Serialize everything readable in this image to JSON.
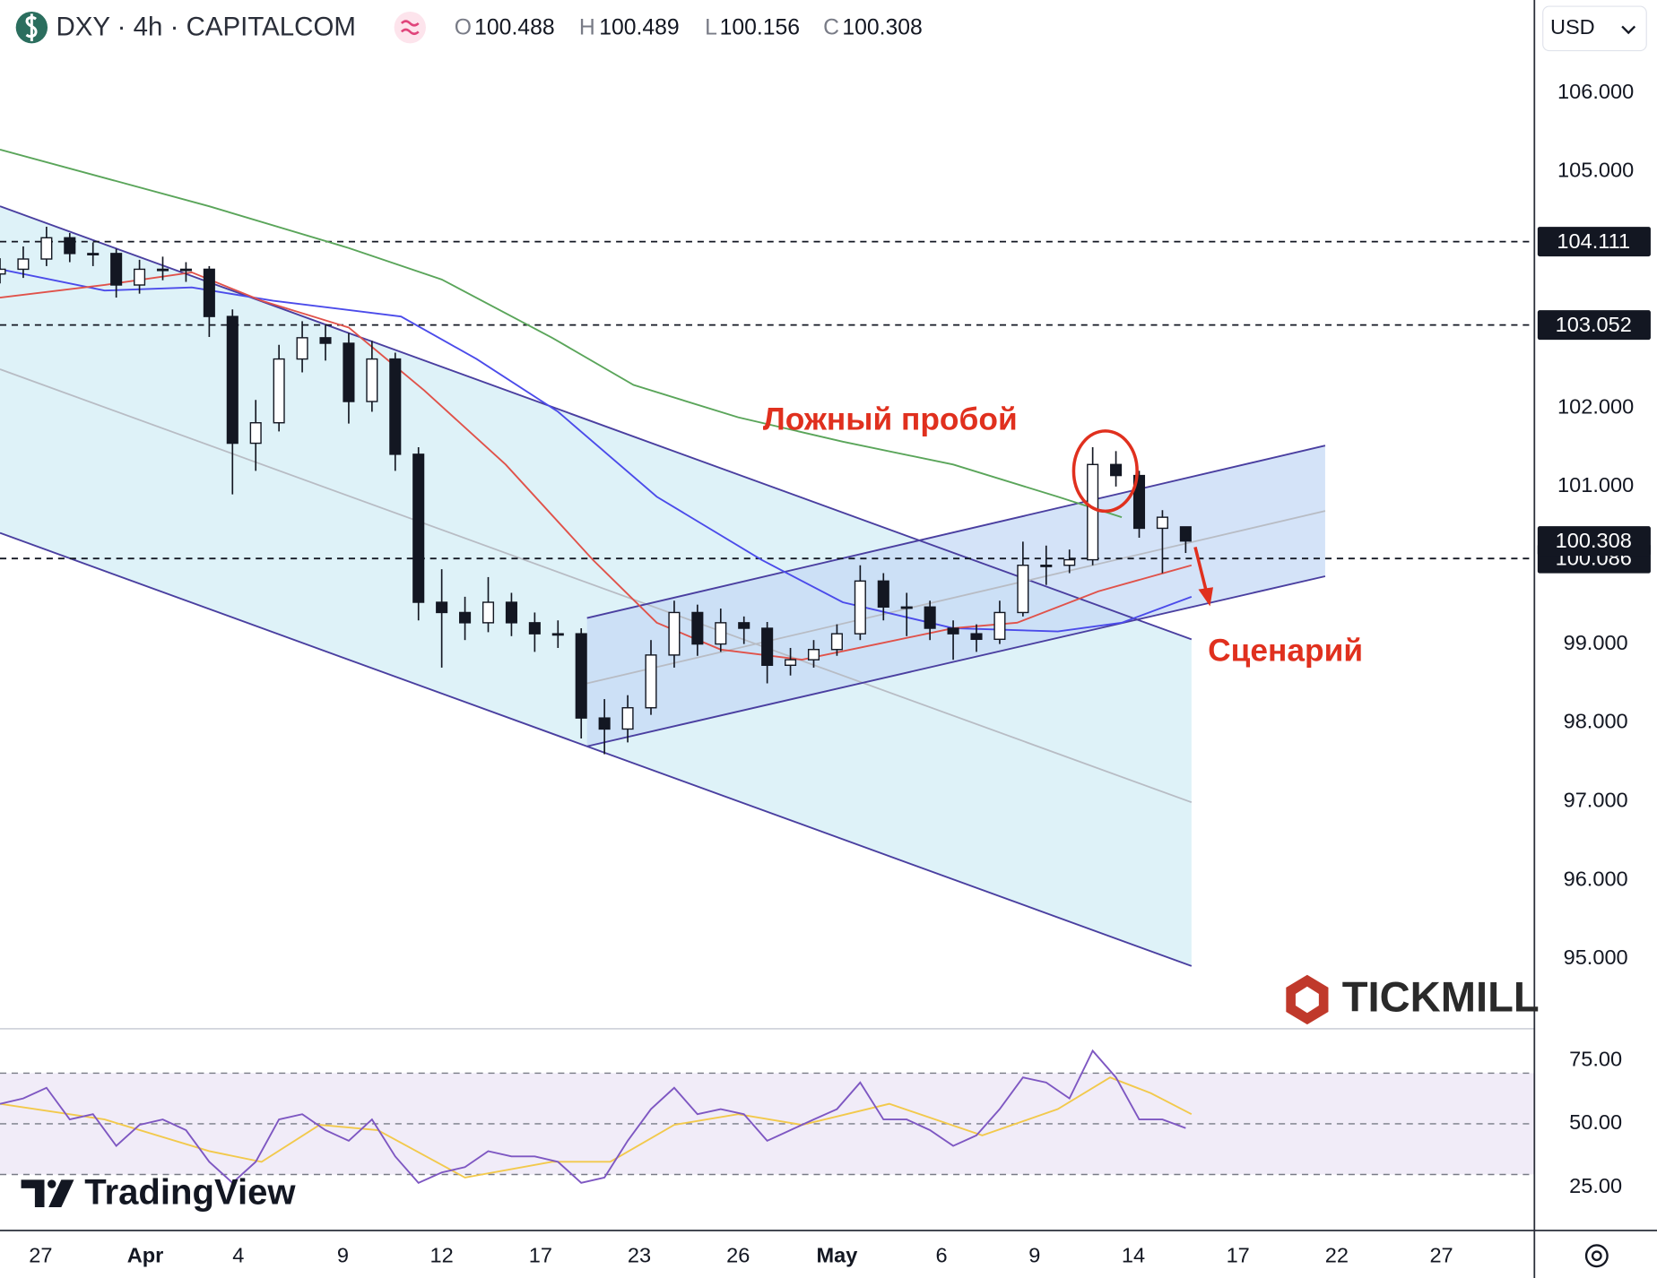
{
  "header": {
    "symbol": "DXY · 4h · CAPITALCOM",
    "ohlc_letters": [
      "O",
      "H",
      "L",
      "C"
    ]
  },
  "currency": "USD",
  "watermarks": [
    "TradingView",
    "TICKMILL"
  ],
  "chart_data": [
    {
      "type": "candlestick",
      "annotations": [
        "Ложный пробой",
        "Сценарий"
      ],
      "xlim": [
        0,
        264
      ],
      "xticks": [
        {
          "value": 7,
          "label": "27"
        },
        {
          "value": 25,
          "label": "Apr"
        },
        {
          "value": 41,
          "label": "4"
        },
        {
          "value": 59,
          "label": "9"
        },
        {
          "value": 76,
          "label": "12"
        },
        {
          "value": 93,
          "label": "17"
        },
        {
          "value": 110,
          "label": "23"
        },
        {
          "value": 127,
          "label": "26"
        },
        {
          "value": 144,
          "label": "May"
        },
        {
          "value": 162,
          "label": "6"
        },
        {
          "value": 178,
          "label": "9"
        },
        {
          "value": 195,
          "label": "14"
        },
        {
          "value": 213,
          "label": "17"
        },
        {
          "value": 230,
          "label": "22"
        },
        {
          "value": 248,
          "label": "27"
        }
      ],
      "ylim": [
        94.14,
        107.18
      ],
      "yticks": [
        {
          "value": 95,
          "label": "95.000"
        },
        {
          "value": 96,
          "label": "96.000"
        },
        {
          "value": 97,
          "label": "97.000"
        },
        {
          "value": 98,
          "label": "98.000"
        },
        {
          "value": 99,
          "label": "99.000"
        },
        {
          "value": 101,
          "label": "101.000"
        },
        {
          "value": 102,
          "label": "102.000"
        },
        {
          "value": 105,
          "label": "105.000"
        },
        {
          "value": 106,
          "label": "106.000"
        }
      ],
      "levels": [
        104.111,
        103.052,
        100.086
      ],
      "x": [
        0,
        4,
        8,
        12,
        16,
        20,
        24,
        28,
        32,
        36,
        40,
        44,
        48,
        52,
        56,
        60,
        64,
        68,
        72,
        76,
        80,
        84,
        88,
        92,
        96,
        100,
        104,
        108,
        112,
        116,
        120,
        124,
        128,
        132,
        136,
        140,
        144,
        148,
        152,
        156,
        160,
        164,
        168,
        172,
        176,
        180,
        184,
        188,
        192,
        196,
        200,
        204
      ],
      "candles": [
        [
          103.7,
          103.9,
          103.58,
          103.76
        ],
        [
          103.76,
          104.05,
          103.65,
          103.89
        ],
        [
          103.89,
          104.3,
          103.8,
          104.16
        ],
        [
          104.16,
          104.22,
          103.85,
          103.96
        ],
        [
          103.96,
          104.1,
          103.8,
          103.96
        ],
        [
          103.96,
          104.02,
          103.4,
          103.56
        ],
        [
          103.56,
          103.88,
          103.45,
          103.76
        ],
        [
          103.76,
          103.92,
          103.62,
          103.76
        ],
        [
          103.76,
          103.85,
          103.6,
          103.76
        ],
        [
          103.76,
          103.8,
          102.9,
          103.16
        ],
        [
          103.16,
          103.25,
          100.9,
          101.55
        ],
        [
          101.55,
          102.1,
          101.2,
          101.81
        ],
        [
          101.81,
          102.8,
          101.7,
          102.62
        ],
        [
          102.62,
          103.1,
          102.45,
          102.89
        ],
        [
          102.89,
          103.05,
          102.6,
          102.82
        ],
        [
          102.82,
          102.95,
          101.8,
          102.08
        ],
        [
          102.08,
          102.85,
          101.95,
          102.62
        ],
        [
          102.62,
          102.7,
          101.2,
          101.41
        ],
        [
          101.41,
          101.5,
          99.3,
          99.53
        ],
        [
          99.53,
          99.95,
          98.7,
          99.4
        ],
        [
          99.4,
          99.6,
          99.05,
          99.27
        ],
        [
          99.27,
          99.85,
          99.15,
          99.53
        ],
        [
          99.53,
          99.65,
          99.1,
          99.27
        ],
        [
          99.27,
          99.4,
          98.9,
          99.13
        ],
        [
          99.13,
          99.3,
          98.95,
          99.13
        ],
        [
          99.13,
          99.2,
          97.8,
          98.06
        ],
        [
          98.06,
          98.3,
          97.6,
          97.92
        ],
        [
          97.92,
          98.35,
          97.75,
          98.19
        ],
        [
          98.19,
          99.05,
          98.1,
          98.86
        ],
        [
          98.86,
          99.55,
          98.7,
          99.4
        ],
        [
          99.4,
          99.5,
          98.85,
          99.0
        ],
        [
          99.0,
          99.45,
          98.9,
          99.27
        ],
        [
          99.27,
          99.35,
          99.0,
          99.2
        ],
        [
          99.2,
          99.28,
          98.5,
          98.73
        ],
        [
          98.73,
          98.95,
          98.6,
          98.8
        ],
        [
          98.8,
          99.05,
          98.7,
          98.93
        ],
        [
          98.93,
          99.25,
          98.85,
          99.13
        ],
        [
          99.13,
          100.0,
          99.05,
          99.8
        ],
        [
          99.8,
          99.9,
          99.3,
          99.47
        ],
        [
          99.47,
          99.65,
          99.1,
          99.47
        ],
        [
          99.47,
          99.55,
          99.05,
          99.2
        ],
        [
          99.2,
          99.3,
          98.8,
          99.13
        ],
        [
          99.13,
          99.25,
          98.9,
          99.06
        ],
        [
          99.06,
          99.55,
          99.0,
          99.4
        ],
        [
          99.4,
          100.3,
          99.35,
          100.0
        ],
        [
          100.0,
          100.25,
          99.75,
          100.0
        ],
        [
          100.0,
          100.2,
          99.9,
          100.07
        ],
        [
          100.07,
          101.5,
          100.0,
          101.28
        ],
        [
          101.28,
          101.45,
          101.0,
          101.14
        ],
        [
          101.14,
          101.2,
          100.35,
          100.47
        ],
        [
          100.47,
          100.7,
          99.9,
          100.61
        ],
        [
          100.488,
          100.489,
          100.156,
          100.308
        ]
      ],
      "up_color": "#ffffff",
      "down_color": "#131722",
      "moving_averages": [
        {
          "color": "#5aa55a",
          "x": [
            0,
            36,
            60,
            76,
            95,
            109,
            127,
            145,
            164,
            182,
            193
          ],
          "values": [
            105.28,
            104.56,
            104.03,
            103.63,
            102.89,
            102.29,
            101.88,
            101.57,
            101.28,
            100.87,
            100.61
          ]
        },
        {
          "color": "#4b4bea",
          "x": [
            0,
            18,
            33,
            47,
            69,
            82,
            96,
            113,
            131,
            145,
            164,
            182,
            193,
            205
          ],
          "values": [
            103.76,
            103.49,
            103.53,
            103.36,
            103.16,
            102.62,
            101.95,
            100.87,
            100.07,
            99.53,
            99.2,
            99.16,
            99.27,
            99.6
          ]
        },
        {
          "color": "#e0524a",
          "x": [
            0,
            18,
            33,
            45,
            60,
            73,
            87,
            102,
            113,
            124,
            138,
            151,
            164,
            175,
            189,
            205
          ],
          "values": [
            103.4,
            103.56,
            103.72,
            103.36,
            103.02,
            102.22,
            101.28,
            100.07,
            99.27,
            98.93,
            98.8,
            99.0,
            99.2,
            99.27,
            99.67,
            100.0
          ]
        }
      ],
      "channels": [
        {
          "fill": "#d3edf5",
          "line_color": "#4a3fa0",
          "mid_color": "#b8bcc4",
          "upper": {
            "x": [
              0,
              205
            ],
            "values": [
              104.56,
              99.06
            ]
          },
          "mid": {
            "x": [
              0,
              205
            ],
            "values": [
              102.49,
              96.99
            ]
          },
          "lower": {
            "x": [
              0,
              205
            ],
            "values": [
              100.41,
              94.91
            ]
          }
        },
        {
          "fill": "#c6d9f5",
          "line_color": "#4a3fa0",
          "mid_color": "#b8bcc4",
          "upper": {
            "x": [
              101,
              228
            ],
            "values": [
              99.33,
              101.52
            ]
          },
          "mid": {
            "x": [
              101,
              228
            ],
            "values": [
              98.5,
              100.69
            ]
          },
          "lower": {
            "x": [
              101,
              228
            ],
            "values": [
              97.7,
              99.86
            ]
          }
        }
      ]
    },
    {
      "type": "line",
      "xlim": [
        0,
        264
      ],
      "ylim": [
        7.9,
        87.1
      ],
      "yticks": [
        {
          "value": 25,
          "label": "25.00"
        },
        {
          "value": 50,
          "label": "50.00"
        },
        {
          "value": 75,
          "label": "75.00"
        }
      ],
      "bands": [
        70,
        50,
        30
      ],
      "band_fill": "#ede7f6",
      "x": [
        0,
        4,
        8,
        12,
        16,
        20,
        24,
        28,
        32,
        36,
        40,
        44,
        48,
        52,
        56,
        60,
        64,
        68,
        72,
        76,
        80,
        84,
        88,
        92,
        96,
        100,
        104,
        108,
        112,
        116,
        120,
        124,
        128,
        132,
        136,
        140,
        144,
        148,
        152,
        156,
        160,
        164,
        168,
        172,
        176,
        180,
        184,
        188,
        192,
        196,
        200,
        204
      ],
      "series": [
        {
          "color": "#7e57c2",
          "values": [
            57.9,
            60,
            64.2,
            51.7,
            53.8,
            41.3,
            49.6,
            51.7,
            47.5,
            35,
            26.7,
            35,
            51.7,
            53.8,
            47.5,
            43.3,
            51.7,
            37.1,
            26.7,
            30.8,
            32.9,
            39.2,
            37.1,
            37.1,
            35,
            26.7,
            28.8,
            43.3,
            55.8,
            64.2,
            53.8,
            55.8,
            53.8,
            43.3,
            47.5,
            51.7,
            55.8,
            66.3,
            51.7,
            51.7,
            47.5,
            41.3,
            45.4,
            55.8,
            68.3,
            66.3,
            60,
            78.8,
            68.3,
            51.7,
            51.7,
            48.3
          ]
        }
      ],
      "ma": {
        "color": "#f2c94c",
        "x": [
          0,
          18,
          36,
          45,
          55,
          65,
          80,
          95,
          105,
          116,
          127,
          138,
          153,
          169,
          182,
          191,
          198,
          205
        ],
        "values": [
          57.9,
          51.7,
          39.2,
          35,
          49.6,
          47.5,
          28.8,
          35,
          35,
          49.6,
          53.8,
          49.6,
          57.9,
          45.4,
          55.8,
          68.3,
          62.1,
          53.8
        ]
      }
    }
  ]
}
